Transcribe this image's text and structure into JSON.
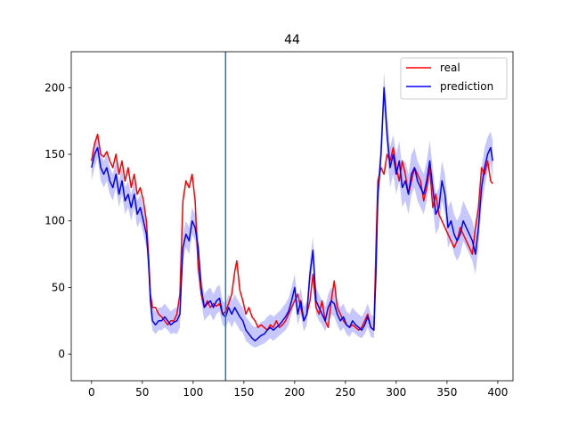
{
  "chart_data": {
    "type": "line",
    "title": "44",
    "xlabel": "",
    "ylabel": "",
    "xlim": [
      -20,
      415
    ],
    "ylim": [
      -20,
      227
    ],
    "x_ticks": [
      0,
      50,
      100,
      150,
      200,
      250,
      300,
      350,
      400
    ],
    "y_ticks": [
      0,
      50,
      100,
      150,
      200
    ],
    "grid": false,
    "legend_position": "top-right",
    "vline_x": 132,
    "vline_color": "#1f77b4",
    "band_color": "#0000ff",
    "series": [
      {
        "name": "real",
        "color": "#ff0000",
        "x": [
          0,
          3,
          6,
          9,
          12,
          15,
          18,
          21,
          24,
          27,
          30,
          33,
          36,
          39,
          42,
          45,
          48,
          51,
          54,
          56,
          58,
          60,
          63,
          66,
          69,
          72,
          75,
          78,
          81,
          84,
          87,
          90,
          93,
          96,
          99,
          102,
          105,
          108,
          111,
          114,
          117,
          120,
          123,
          126,
          129,
          132,
          135,
          138,
          141,
          143,
          146,
          149,
          152,
          155,
          158,
          161,
          164,
          167,
          170,
          173,
          176,
          179,
          182,
          185,
          188,
          191,
          194,
          197,
          200,
          203,
          206,
          209,
          212,
          215,
          218,
          221,
          224,
          227,
          230,
          233,
          236,
          239,
          242,
          245,
          248,
          251,
          254,
          257,
          260,
          263,
          266,
          269,
          272,
          275,
          278,
          280,
          282,
          285,
          288,
          291,
          294,
          297,
          300,
          303,
          306,
          309,
          312,
          315,
          318,
          321,
          324,
          327,
          330,
          333,
          336,
          339,
          342,
          345,
          348,
          351,
          354,
          357,
          360,
          363,
          366,
          369,
          372,
          375,
          378,
          381,
          384,
          387,
          390,
          393,
          395
        ],
        "values": [
          145,
          158,
          165,
          150,
          148,
          152,
          145,
          140,
          150,
          135,
          145,
          130,
          140,
          125,
          135,
          120,
          125,
          115,
          100,
          75,
          45,
          35,
          35,
          30,
          28,
          25,
          22,
          25,
          25,
          30,
          45,
          115,
          130,
          125,
          135,
          115,
          65,
          45,
          35,
          40,
          35,
          38,
          36,
          38,
          30,
          32,
          38,
          45,
          62,
          70,
          48,
          40,
          30,
          35,
          28,
          25,
          20,
          22,
          20,
          18,
          22,
          20,
          25,
          20,
          22,
          25,
          30,
          35,
          40,
          45,
          35,
          25,
          30,
          40,
          60,
          35,
          30,
          40,
          25,
          20,
          40,
          55,
          35,
          30,
          25,
          22,
          20,
          22,
          20,
          18,
          20,
          25,
          30,
          20,
          18,
          80,
          130,
          140,
          135,
          150,
          145,
          155,
          140,
          130,
          145,
          135,
          120,
          130,
          140,
          135,
          130,
          115,
          125,
          140,
          110,
          120,
          105,
          100,
          95,
          90,
          85,
          80,
          85,
          95,
          90,
          85,
          80,
          75,
          95,
          110,
          140,
          135,
          145,
          130,
          128
        ]
      },
      {
        "name": "prediction",
        "color": "#0000ff",
        "x": [
          0,
          3,
          6,
          9,
          12,
          15,
          18,
          21,
          24,
          27,
          30,
          33,
          36,
          39,
          42,
          45,
          48,
          51,
          54,
          56,
          58,
          60,
          63,
          66,
          69,
          72,
          75,
          78,
          81,
          84,
          87,
          90,
          93,
          96,
          99,
          102,
          105,
          108,
          111,
          114,
          117,
          120,
          123,
          126,
          129,
          132,
          135,
          138,
          141,
          143,
          146,
          149,
          152,
          155,
          158,
          161,
          164,
          167,
          170,
          173,
          176,
          179,
          182,
          185,
          188,
          191,
          194,
          197,
          200,
          203,
          206,
          209,
          212,
          215,
          218,
          221,
          224,
          227,
          230,
          233,
          236,
          239,
          242,
          245,
          248,
          251,
          254,
          257,
          260,
          263,
          266,
          269,
          272,
          275,
          278,
          280,
          282,
          285,
          288,
          291,
          294,
          297,
          300,
          303,
          306,
          309,
          312,
          315,
          318,
          321,
          324,
          327,
          330,
          333,
          336,
          339,
          342,
          345,
          348,
          351,
          354,
          357,
          360,
          363,
          366,
          369,
          372,
          375,
          378,
          381,
          384,
          387,
          390,
          393,
          395
        ],
        "values": [
          140,
          150,
          155,
          140,
          135,
          140,
          130,
          125,
          135,
          120,
          130,
          115,
          120,
          110,
          120,
          105,
          110,
          100,
          90,
          70,
          40,
          25,
          22,
          25,
          25,
          28,
          25,
          22,
          24,
          25,
          30,
          80,
          90,
          85,
          100,
          95,
          80,
          50,
          35,
          38,
          40,
          35,
          40,
          42,
          30,
          28,
          35,
          30,
          35,
          32,
          28,
          25,
          18,
          15,
          12,
          10,
          12,
          14,
          15,
          18,
          20,
          18,
          20,
          22,
          25,
          28,
          32,
          40,
          50,
          30,
          40,
          25,
          30,
          60,
          78,
          40,
          35,
          30,
          25,
          35,
          40,
          38,
          30,
          25,
          28,
          22,
          20,
          25,
          22,
          20,
          18,
          22,
          28,
          20,
          18,
          60,
          120,
          150,
          200,
          165,
          140,
          150,
          135,
          145,
          125,
          130,
          120,
          135,
          140,
          130,
          125,
          120,
          130,
          145,
          125,
          105,
          110,
          130,
          120,
          95,
          100,
          90,
          85,
          90,
          100,
          95,
          90,
          85,
          75,
          95,
          125,
          140,
          150,
          155,
          145
        ],
        "band_upper": [
          150,
          160,
          163,
          150,
          145,
          150,
          140,
          135,
          145,
          130,
          140,
          125,
          130,
          120,
          130,
          115,
          120,
          110,
          100,
          80,
          50,
          35,
          32,
          35,
          35,
          38,
          35,
          32,
          34,
          35,
          40,
          90,
          100,
          95,
          110,
          105,
          90,
          60,
          45,
          48,
          50,
          45,
          50,
          52,
          40,
          38,
          45,
          40,
          45,
          42,
          38,
          35,
          28,
          25,
          22,
          20,
          22,
          24,
          25,
          28,
          30,
          28,
          30,
          32,
          35,
          38,
          42,
          50,
          60,
          40,
          50,
          35,
          40,
          70,
          88,
          50,
          45,
          40,
          35,
          45,
          50,
          48,
          40,
          35,
          38,
          32,
          30,
          35,
          32,
          30,
          28,
          32,
          38,
          30,
          28,
          70,
          130,
          165,
          212,
          180,
          155,
          165,
          150,
          160,
          140,
          145,
          135,
          150,
          155,
          145,
          140,
          135,
          145,
          160,
          140,
          120,
          125,
          145,
          135,
          110,
          115,
          105,
          100,
          105,
          115,
          110,
          105,
          100,
          90,
          110,
          140,
          155,
          163,
          167,
          160
        ],
        "band_lower": [
          130,
          140,
          147,
          130,
          125,
          130,
          120,
          115,
          125,
          110,
          120,
          105,
          110,
          100,
          110,
          95,
          100,
          90,
          80,
          60,
          30,
          18,
          15,
          18,
          18,
          20,
          18,
          15,
          16,
          15,
          20,
          70,
          80,
          75,
          90,
          85,
          70,
          40,
          25,
          28,
          30,
          25,
          30,
          32,
          22,
          20,
          25,
          20,
          25,
          22,
          18,
          16,
          10,
          8,
          6,
          5,
          6,
          7,
          8,
          10,
          12,
          10,
          12,
          14,
          16,
          18,
          22,
          30,
          40,
          22,
          30,
          17,
          22,
          50,
          68,
          30,
          25,
          22,
          17,
          25,
          30,
          28,
          22,
          17,
          20,
          15,
          13,
          17,
          15,
          13,
          12,
          15,
          20,
          13,
          12,
          50,
          110,
          135,
          188,
          150,
          125,
          135,
          120,
          130,
          110,
          115,
          105,
          120,
          125,
          115,
          110,
          105,
          115,
          130,
          110,
          90,
          95,
          115,
          105,
          80,
          85,
          75,
          70,
          75,
          85,
          80,
          75,
          70,
          60,
          80,
          110,
          125,
          137,
          143,
          130
        ]
      }
    ]
  }
}
